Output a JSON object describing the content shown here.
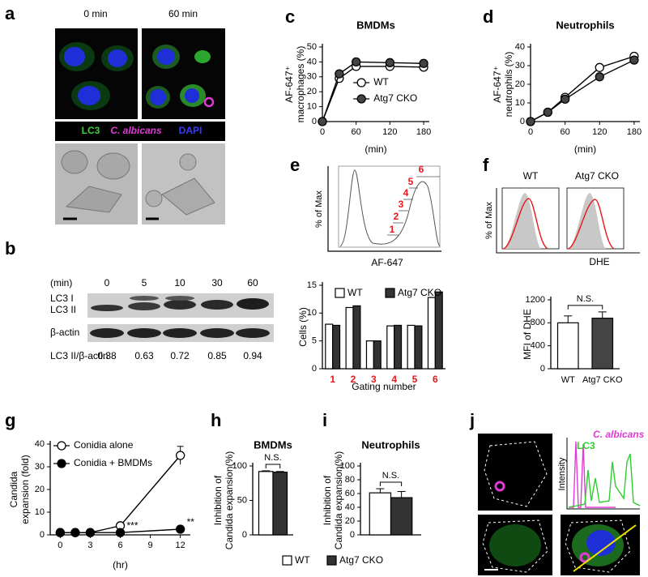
{
  "panel_labels": [
    "a",
    "b",
    "c",
    "d",
    "e",
    "f",
    "g",
    "h",
    "i",
    "j"
  ],
  "a": {
    "times": [
      "0 min",
      "60 min"
    ],
    "stains": [
      "LC3",
      "C. albicans",
      "DAPI"
    ]
  },
  "b": {
    "unit": "(min)",
    "lanes": [
      0,
      5,
      10,
      30,
      60
    ],
    "bands": [
      "LC3 I",
      "LC3 II",
      "β-actin"
    ],
    "ratio_label": "LC3 II/β-actin",
    "ratios": [
      0.38,
      0.63,
      0.72,
      0.85,
      0.94
    ]
  },
  "e_hist": {
    "ylabel": "% of Max",
    "xlabel": "AF-647",
    "gates": [
      1,
      2,
      3,
      4,
      5,
      6
    ]
  },
  "f_hist": {
    "titles": [
      "WT",
      "Atg7 CKO"
    ],
    "ylabel": "% of Max",
    "xlabel": "DHE"
  },
  "j": {
    "legend": [
      "C. albicans",
      "LC3"
    ],
    "ylabel": "Intensity"
  },
  "chart_data": [
    {
      "type": "line",
      "title": "BMDMs",
      "x": [
        0,
        30,
        60,
        120,
        180
      ],
      "xlim": [
        0,
        190
      ],
      "xticks": [
        0,
        60,
        120,
        180
      ],
      "xlabel": "(min)",
      "ylim": [
        0,
        50
      ],
      "yticks": [
        0,
        10,
        20,
        30,
        40,
        50
      ],
      "ylabel": [
        "AF-647⁺",
        "macrophages (%)"
      ],
      "legend": "lower right",
      "series": [
        {
          "name": "WT",
          "color": "#ffffff",
          "values": [
            0,
            29,
            37,
            37,
            36.5
          ]
        },
        {
          "name": "Atg7 CKO",
          "color": "#444444",
          "values": [
            0,
            32,
            40,
            39.5,
            39
          ]
        }
      ]
    },
    {
      "type": "line",
      "title": "Neutrophils",
      "x": [
        0,
        30,
        60,
        120,
        180
      ],
      "xlim": [
        0,
        190
      ],
      "xticks": [
        0,
        60,
        120,
        180
      ],
      "xlabel": "(min)",
      "ylim": [
        0,
        40
      ],
      "yticks": [
        0,
        10,
        20,
        30,
        40
      ],
      "ylabel": [
        "AF-647⁺",
        "neutrophils (%)"
      ],
      "series": [
        {
          "color": "#ffffff",
          "values": [
            0,
            5,
            13,
            29,
            35
          ]
        },
        {
          "color": "#444444",
          "values": [
            0,
            5,
            12,
            24,
            33
          ]
        }
      ]
    },
    {
      "type": "bar",
      "categories": [
        "1",
        "2",
        "3",
        "4",
        "5",
        "6"
      ],
      "xtick_color": "#e8161b",
      "xlabel": "Gating number",
      "ylim": [
        0,
        15
      ],
      "yticks": [
        0,
        5,
        10,
        15
      ],
      "ylabel": [
        "Cells (%)"
      ],
      "legend": "top",
      "series": [
        {
          "name": "WT",
          "color": "#ffffff",
          "values": [
            8,
            11,
            5,
            7.7,
            7.8,
            12.8
          ]
        },
        {
          "name": "Atg7 CKO",
          "color": "#333333",
          "values": [
            7.8,
            11.3,
            5,
            7.8,
            7.7,
            13.8
          ]
        }
      ]
    },
    {
      "type": "bar",
      "categories": [
        "WT",
        "Atg7 CKO"
      ],
      "values": [
        800,
        880
      ],
      "errors": [
        120,
        110
      ],
      "colors": [
        "#ffffff",
        "#444444"
      ],
      "ylim": [
        0,
        1200
      ],
      "yticks": [
        0,
        400,
        800,
        1200
      ],
      "ylabel": [
        "MFI of DHE"
      ],
      "annotations": [
        "N.S."
      ]
    },
    {
      "type": "line",
      "x": [
        0,
        1.5,
        3,
        6,
        12
      ],
      "xlim": [
        -1,
        13
      ],
      "xticks": [
        0,
        3,
        6,
        9,
        12
      ],
      "xlabel": "(hr)",
      "ylim": [
        0,
        40
      ],
      "yticks": [
        0,
        10,
        20,
        30,
        40
      ],
      "ylabel": [
        "Candida",
        "expansion (fold)"
      ],
      "legend": "upper left",
      "annotations": [
        "***",
        "**"
      ],
      "series": [
        {
          "name": "Conidia alone",
          "color": "#ffffff",
          "values": [
            1,
            1,
            1,
            4,
            35
          ],
          "errors": [
            0,
            0,
            0,
            0.5,
            4
          ]
        },
        {
          "name": "Conidia + BMDMs",
          "color": "#000000",
          "values": [
            1,
            1,
            1,
            1,
            2.5
          ]
        }
      ]
    },
    {
      "type": "bar",
      "title": "BMDMs",
      "categories": [
        null
      ],
      "ylim": [
        0,
        100
      ],
      "yticks": [
        0,
        50,
        100
      ],
      "ylabel": [
        "Inhibition of",
        "Candida expansion(%)"
      ],
      "legend": "below",
      "annotations": [
        "N.S."
      ],
      "series": [
        {
          "name": "WT",
          "color": "#ffffff",
          "values": [
            92
          ],
          "errors": [
            1
          ]
        },
        {
          "name": "Atg7 CKO",
          "color": "#333333",
          "values": [
            91
          ],
          "errors": [
            1
          ]
        }
      ]
    },
    {
      "type": "bar",
      "title": "Neutrophils",
      "categories": [
        null
      ],
      "ylim": [
        0,
        100
      ],
      "yticks": [
        0,
        20,
        40,
        60,
        80,
        100
      ],
      "ylabel": [
        "Inhibition of",
        "Candida expansion(%)"
      ],
      "annotations": [
        "N.S."
      ],
      "series": [
        {
          "color": "#ffffff",
          "values": [
            61
          ],
          "errors": [
            6
          ]
        },
        {
          "color": "#333333",
          "values": [
            54
          ],
          "errors": [
            9
          ]
        }
      ]
    }
  ]
}
